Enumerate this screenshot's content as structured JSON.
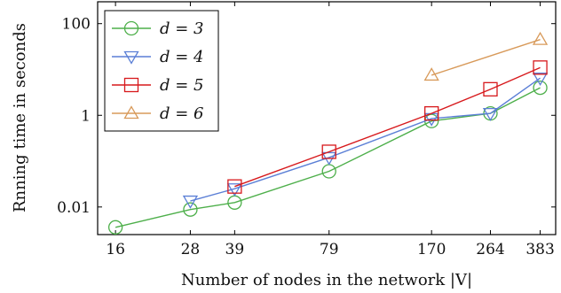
{
  "chart_data": {
    "type": "line",
    "xlabel": "Number of nodes in the network |V|",
    "ylabel": "Rnning time in seconds",
    "x_scale": "log",
    "y_scale": "log",
    "xlim": [
      14,
      430
    ],
    "ylim": [
      0.0025,
      300
    ],
    "x_ticks": [
      16,
      28,
      39,
      79,
      170,
      264,
      383
    ],
    "x_tick_labels": [
      "16",
      "28",
      "39",
      "79",
      "170",
      "264",
      "383"
    ],
    "y_ticks": [
      0.01,
      1,
      100
    ],
    "y_tick_labels": [
      "0.01",
      "1",
      "100"
    ],
    "legend_position": "top-left",
    "grid": false,
    "series": [
      {
        "name": "d = 3",
        "color": "#4daf4a",
        "marker": "circle",
        "x": [
          16,
          28,
          39,
          79,
          170,
          264,
          383
        ],
        "y": [
          0.0036,
          0.0088,
          0.0125,
          0.06,
          0.75,
          1.1,
          4.0
        ]
      },
      {
        "name": "d = 4",
        "color": "#5b7fd6",
        "marker": "triangle-down",
        "x": [
          28,
          39,
          79,
          170,
          264,
          383
        ],
        "y": [
          0.0135,
          0.025,
          0.12,
          0.85,
          1.1,
          6.5
        ]
      },
      {
        "name": "d = 5",
        "color": "#d7191c",
        "marker": "square",
        "x": [
          39,
          79,
          170,
          264,
          383
        ],
        "y": [
          0.028,
          0.16,
          1.1,
          3.7,
          11
        ]
      },
      {
        "name": "d = 6",
        "color": "#d89a5a",
        "marker": "triangle-up",
        "x": [
          170,
          383
        ],
        "y": [
          7.5,
          45
        ]
      }
    ]
  }
}
